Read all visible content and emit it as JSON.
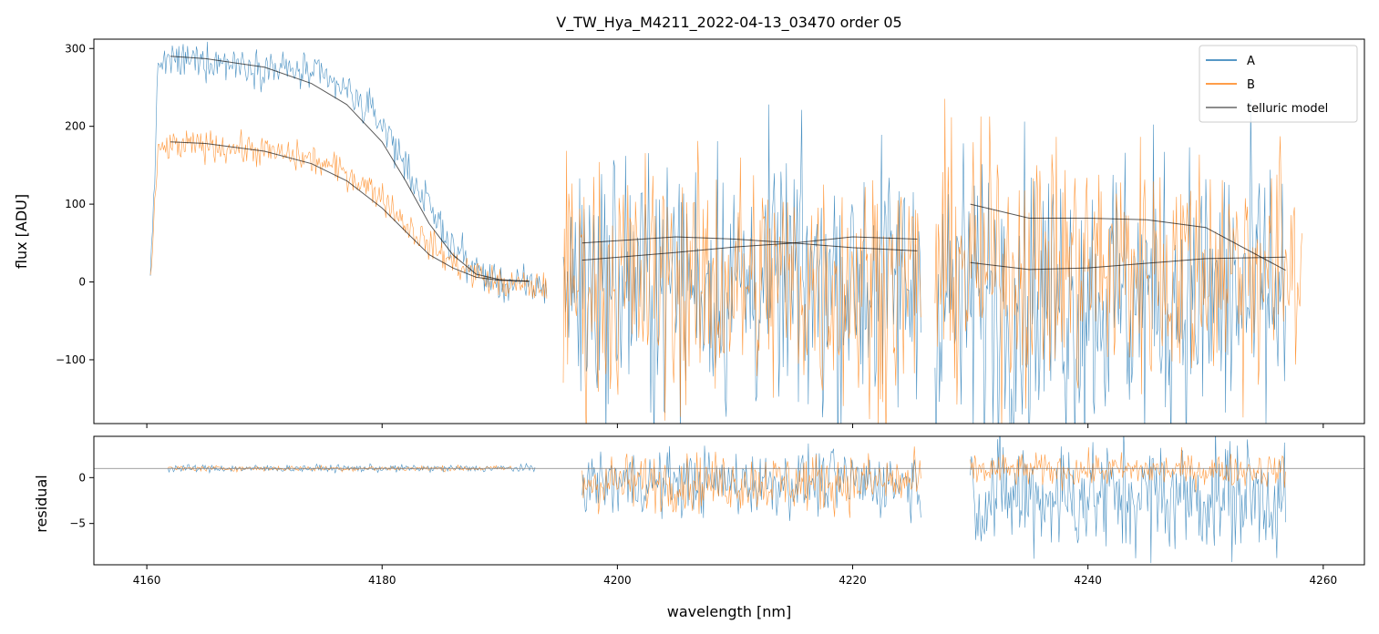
{
  "chart_data": {
    "type": "line",
    "title": "V_TW_Hya_M4211_2022-04-13_03470  order 05",
    "xlabel": "wavelength [nm]",
    "xlim": [
      4155.5,
      4263.5
    ],
    "xticks": [
      4160,
      4180,
      4200,
      4220,
      4240,
      4260
    ],
    "xtick_labels": [
      "4160",
      "4180",
      "4200",
      "4220",
      "4240",
      "4260"
    ],
    "legend_position": "top-right",
    "colors": {
      "A": "#1f77b4",
      "B": "#ff7f0e",
      "telluric": "#000000",
      "zero_line": "#808080"
    },
    "panels": {
      "flux": {
        "ylabel": "flux [ADU]",
        "ylim": [
          -182,
          312
        ],
        "yticks": [
          -100,
          0,
          100,
          200,
          300
        ],
        "ytick_labels": [
          "−100",
          "0",
          "100",
          "200",
          "300"
        ],
        "series": [
          {
            "name": "A",
            "segments": [
              {
                "x_range": [
                  4160.3,
                  4194.0
                ],
                "continuum_x": [
                  4160.3,
                  4161,
                  4165,
                  4170,
                  4174,
                  4177,
                  4180,
                  4182,
                  4184,
                  4186,
                  4188,
                  4190,
                  4192,
                  4194
                ],
                "continuum_y": [
                  0,
                  282,
                  285,
                  277,
                  268,
                  245,
                  205,
                  150,
                  95,
                  45,
                  15,
                  -2,
                  -5,
                  -6
                ],
                "noise": 12
              },
              {
                "x_range": [
                  4195.4,
                  4225.8
                ],
                "level": 0,
                "noise": 85
              },
              {
                "x_range": [
                  4227.0,
                  4256.8
                ],
                "level": -20,
                "noise": 95
              }
            ]
          },
          {
            "name": "B",
            "segments": [
              {
                "x_range": [
                  4160.3,
                  4194.0
                ],
                "continuum_x": [
                  4160.3,
                  4161,
                  4165,
                  4170,
                  4174,
                  4177,
                  4180,
                  4182,
                  4184,
                  4186,
                  4188,
                  4190,
                  4192,
                  4194
                ],
                "continuum_y": [
                  0,
                  172,
                  176,
                  168,
                  157,
                  140,
                  110,
                  75,
                  48,
                  25,
                  10,
                  -2,
                  -6,
                  -6
                ],
                "noise": 10
              },
              {
                "x_range": [
                  4195.4,
                  4225.8
                ],
                "level": 0,
                "noise": 80
              },
              {
                "x_range": [
                  4227.0,
                  4258.2
                ],
                "level": 20,
                "noise": 80
              }
            ]
          },
          {
            "name": "telluric model",
            "segments": [
              {
                "x": [
                  4162.0,
                  4165,
                  4170,
                  4174,
                  4177,
                  4180,
                  4182,
                  4184,
                  4186,
                  4188,
                  4190,
                  4192.5
                ],
                "y": [
                  180,
                  178,
                  168,
                  152,
                  130,
                  95,
                  65,
                  35,
                  18,
                  6,
                  2,
                  1
                ]
              },
              {
                "x": [
                  4162.0,
                  4165,
                  4170,
                  4174,
                  4177,
                  4180,
                  4182,
                  4184,
                  4186,
                  4188,
                  4190,
                  4192.5
                ],
                "y": [
                  290,
                  287,
                  276,
                  255,
                  228,
                  180,
                  130,
                  75,
                  35,
                  10,
                  3,
                  1
                ]
              },
              {
                "x": [
                  4197.0,
                  4205,
                  4210,
                  4215,
                  4220,
                  4225.5
                ],
                "y": [
                  28,
                  38,
                  45,
                  50,
                  44,
                  40
                ]
              },
              {
                "x": [
                  4197.0,
                  4205,
                  4210,
                  4215,
                  4220,
                  4225.5
                ],
                "y": [
                  50,
                  58,
                  55,
                  50,
                  58,
                  55
                ]
              },
              {
                "x": [
                  4230.0,
                  4235,
                  4240,
                  4245,
                  4250,
                  4256.8
                ],
                "y": [
                  100,
                  82,
                  82,
                  80,
                  70,
                  15
                ]
              },
              {
                "x": [
                  4230.0,
                  4235,
                  4240,
                  4245,
                  4250,
                  4256.8
                ],
                "y": [
                  25,
                  16,
                  18,
                  24,
                  30,
                  32
                ]
              }
            ]
          }
        ]
      },
      "residual": {
        "ylabel": "residual",
        "ylim": [
          -9.5,
          4.5
        ],
        "yticks": [
          -5,
          0
        ],
        "ytick_labels": [
          "−5",
          "0"
        ],
        "zero_line": 1.0,
        "series": [
          {
            "name": "A",
            "segments": [
              {
                "x_range": [
                  4161.8,
                  4193.0
                ],
                "level": 1.0,
                "noise": 0.2
              },
              {
                "x_range": [
                  4197.0,
                  4225.8
                ],
                "level": -0.5,
                "noise": 1.8
              },
              {
                "x_range": [
                  4230.0,
                  4256.8
                ],
                "level": -2.0,
                "noise": 3.2
              }
            ]
          },
          {
            "name": "B",
            "segments": [
              {
                "x_range": [
                  4161.8,
                  4191.0
                ],
                "level": 1.0,
                "noise": 0.15
              },
              {
                "x_range": [
                  4197.0,
                  4225.8
                ],
                "level": -0.5,
                "noise": 1.6
              },
              {
                "x_range": [
                  4230.0,
                  4256.8
                ],
                "level": 0.8,
                "noise": 0.9
              }
            ]
          }
        ]
      }
    },
    "legend": [
      "A",
      "B",
      "telluric model"
    ]
  }
}
